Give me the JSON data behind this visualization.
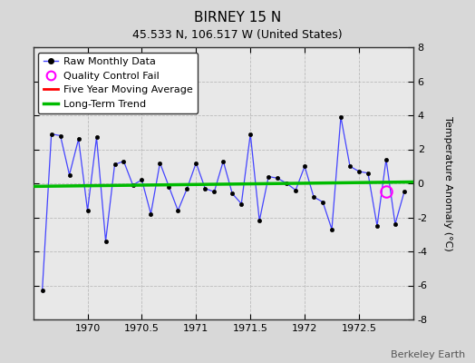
{
  "title": "BIRNEY 15 N",
  "subtitle": "45.533 N, 106.517 W (United States)",
  "ylabel": "Temperature Anomaly (°C)",
  "watermark": "Berkeley Earth",
  "xlim": [
    1969.5,
    1973.0
  ],
  "ylim": [
    -8,
    8
  ],
  "yticks": [
    -8,
    -6,
    -4,
    -2,
    0,
    2,
    4,
    6,
    8
  ],
  "xticks": [
    1970,
    1970.5,
    1971,
    1971.5,
    1972,
    1972.5
  ],
  "background_color": "#d8d8d8",
  "plot_bg_color": "#e8e8e8",
  "raw_x": [
    1969.583,
    1969.667,
    1969.75,
    1969.833,
    1969.917,
    1970.0,
    1970.083,
    1970.167,
    1970.25,
    1970.333,
    1970.417,
    1970.5,
    1970.583,
    1970.667,
    1970.75,
    1970.833,
    1970.917,
    1971.0,
    1971.083,
    1971.167,
    1971.25,
    1971.333,
    1971.417,
    1971.5,
    1971.583,
    1971.667,
    1971.75,
    1971.833,
    1971.917,
    1972.0,
    1972.083,
    1972.167,
    1972.25,
    1972.333,
    1972.417,
    1972.5,
    1972.583,
    1972.667,
    1972.75,
    1972.833,
    1972.917
  ],
  "raw_y": [
    -6.3,
    2.9,
    2.8,
    0.5,
    2.6,
    -1.6,
    2.7,
    -3.4,
    1.1,
    1.3,
    -0.1,
    0.2,
    -1.8,
    1.2,
    -0.2,
    -1.6,
    -0.3,
    1.2,
    -0.3,
    -0.5,
    1.3,
    -0.6,
    -1.2,
    2.9,
    -2.2,
    0.4,
    0.3,
    0.0,
    -0.4,
    1.0,
    -0.8,
    -1.1,
    -2.7,
    3.9,
    1.0,
    0.7,
    0.6,
    -2.5,
    1.4,
    -2.4,
    -0.5
  ],
  "qc_fail_x": [
    1972.75
  ],
  "qc_fail_y": [
    -0.5
  ],
  "trend_x": [
    1969.5,
    1973.0
  ],
  "trend_y": [
    -0.18,
    0.08
  ],
  "line_color": "#4444ff",
  "dot_color": "#000000",
  "moving_avg_color": "#ff0000",
  "trend_color": "#00bb00",
  "qc_color": "#ff00ff",
  "legend_loc": "upper left",
  "title_fontsize": 11,
  "subtitle_fontsize": 9,
  "tick_fontsize": 8,
  "ylabel_fontsize": 8,
  "legend_fontsize": 8,
  "watermark_fontsize": 8
}
